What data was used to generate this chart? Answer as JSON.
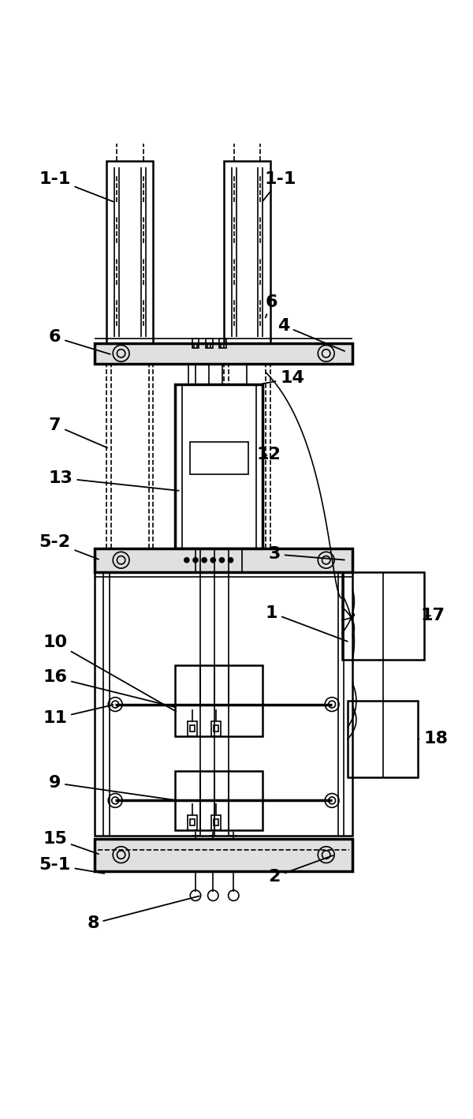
{
  "bg_color": "#ffffff",
  "line_color": "#000000",
  "fig_width": 6.0,
  "fig_height": 14.18
}
